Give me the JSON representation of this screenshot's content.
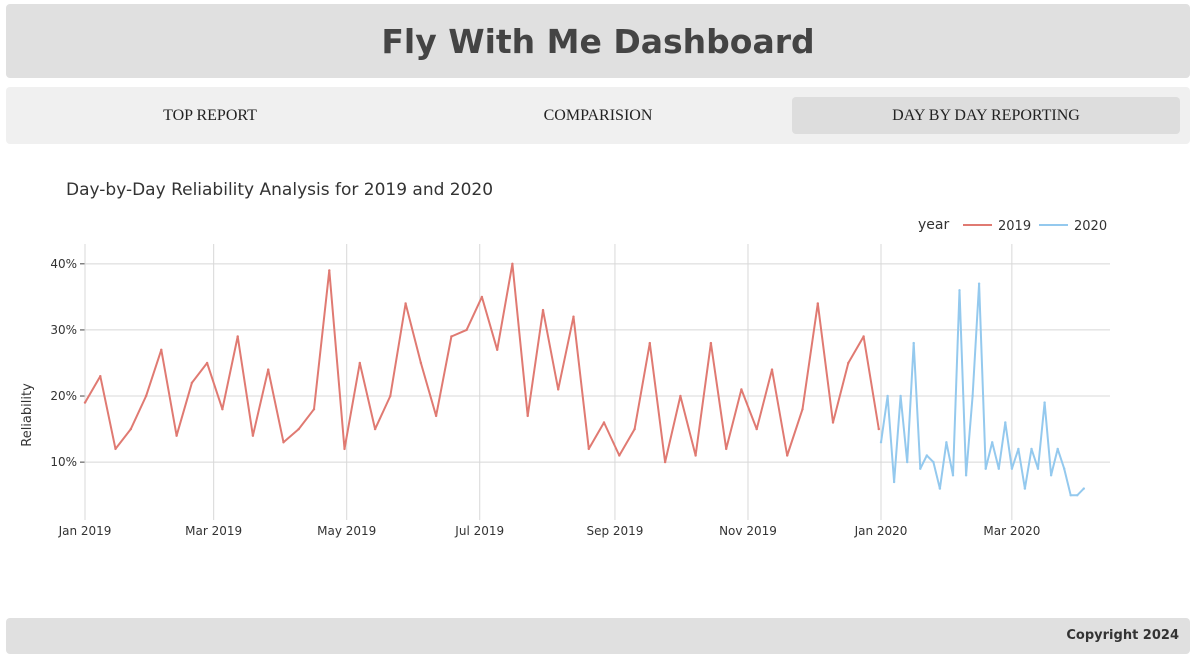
{
  "header": {
    "title": "Fly With Me Dashboard"
  },
  "tabs": [
    {
      "label": "TOP REPORT",
      "active": false
    },
    {
      "label": "COMPARISION",
      "active": false
    },
    {
      "label": "DAY BY DAY REPORTING",
      "active": true
    }
  ],
  "footer": {
    "copyright": "Copyright 2024"
  },
  "colors": {
    "series_2019": "#e07a72",
    "series_2020": "#94c9ee",
    "grid": "#d8d8d8"
  },
  "chart_data": {
    "type": "line",
    "title": "Day-by-Day Reliability Analysis for 2019 and 2020",
    "xlabel": "",
    "ylabel": "Reliability",
    "x_range": [
      "2019-01-01",
      "2020-04-15"
    ],
    "y_range": [
      0.02,
      0.43
    ],
    "y_ticks": [
      0.1,
      0.2,
      0.3,
      0.4
    ],
    "y_tick_labels": [
      "10%",
      "20%",
      "30%",
      "40%"
    ],
    "x_ticks": [
      "2019-01-01",
      "2019-03-01",
      "2019-05-01",
      "2019-07-01",
      "2019-09-01",
      "2019-11-01",
      "2020-01-01",
      "2020-03-01"
    ],
    "x_tick_labels": [
      "Jan 2019",
      "Mar 2019",
      "May 2019",
      "Jul 2019",
      "Sep 2019",
      "Nov 2019",
      "Jan 2020",
      "Mar 2020"
    ],
    "grid": true,
    "legend": {
      "title": "year",
      "placement": "top-right"
    },
    "series": [
      {
        "name": "2019",
        "x": [
          "2019-01-01",
          "2019-01-08",
          "2019-01-15",
          "2019-01-22",
          "2019-01-29",
          "2019-02-05",
          "2019-02-12",
          "2019-02-19",
          "2019-02-26",
          "2019-03-05",
          "2019-03-12",
          "2019-03-19",
          "2019-03-26",
          "2019-04-02",
          "2019-04-09",
          "2019-04-16",
          "2019-04-23",
          "2019-04-30",
          "2019-05-07",
          "2019-05-14",
          "2019-05-21",
          "2019-05-28",
          "2019-06-04",
          "2019-06-11",
          "2019-06-18",
          "2019-06-25",
          "2019-07-02",
          "2019-07-09",
          "2019-07-16",
          "2019-07-23",
          "2019-07-30",
          "2019-08-06",
          "2019-08-13",
          "2019-08-20",
          "2019-08-27",
          "2019-09-03",
          "2019-09-10",
          "2019-09-17",
          "2019-09-24",
          "2019-10-01",
          "2019-10-08",
          "2019-10-15",
          "2019-10-22",
          "2019-10-29",
          "2019-11-05",
          "2019-11-12",
          "2019-11-19",
          "2019-11-26",
          "2019-12-03",
          "2019-12-10",
          "2019-12-17",
          "2019-12-24",
          "2019-12-31"
        ],
        "y": [
          0.19,
          0.23,
          0.12,
          0.15,
          0.2,
          0.27,
          0.14,
          0.22,
          0.25,
          0.18,
          0.29,
          0.14,
          0.24,
          0.13,
          0.15,
          0.18,
          0.39,
          0.12,
          0.25,
          0.15,
          0.2,
          0.34,
          0.25,
          0.17,
          0.29,
          0.3,
          0.35,
          0.27,
          0.4,
          0.17,
          0.33,
          0.21,
          0.32,
          0.12,
          0.16,
          0.11,
          0.15,
          0.28,
          0.1,
          0.2,
          0.11,
          0.28,
          0.12,
          0.21,
          0.15,
          0.24,
          0.11,
          0.18,
          0.34,
          0.16,
          0.25,
          0.29,
          0.15
        ]
      },
      {
        "name": "2020",
        "x": [
          "2020-01-01",
          "2020-01-04",
          "2020-01-07",
          "2020-01-10",
          "2020-01-13",
          "2020-01-16",
          "2020-01-19",
          "2020-01-22",
          "2020-01-25",
          "2020-01-28",
          "2020-01-31",
          "2020-02-03",
          "2020-02-06",
          "2020-02-09",
          "2020-02-12",
          "2020-02-15",
          "2020-02-18",
          "2020-02-21",
          "2020-02-24",
          "2020-02-27",
          "2020-03-01",
          "2020-03-04",
          "2020-03-07",
          "2020-03-10",
          "2020-03-13",
          "2020-03-16",
          "2020-03-19",
          "2020-03-22",
          "2020-03-25",
          "2020-03-28",
          "2020-03-31",
          "2020-04-03"
        ],
        "y": [
          0.13,
          0.2,
          0.07,
          0.2,
          0.1,
          0.28,
          0.09,
          0.11,
          0.1,
          0.06,
          0.13,
          0.08,
          0.36,
          0.08,
          0.2,
          0.37,
          0.09,
          0.13,
          0.09,
          0.16,
          0.09,
          0.12,
          0.06,
          0.12,
          0.09,
          0.19,
          0.08,
          0.12,
          0.09,
          0.05,
          0.05,
          0.06
        ]
      }
    ]
  }
}
